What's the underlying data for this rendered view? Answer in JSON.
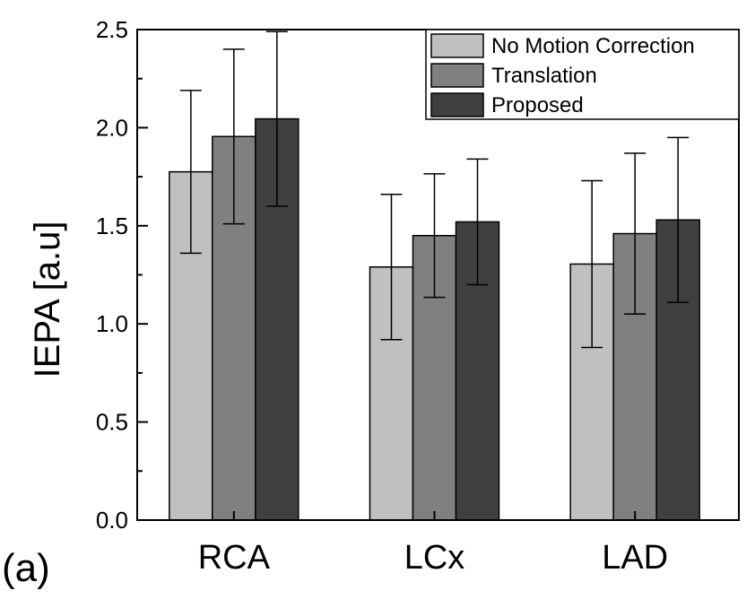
{
  "chart_data": {
    "type": "bar",
    "title": "",
    "xlabel": "",
    "ylabel": "IEPA [a.u]",
    "panel_label": "(a)",
    "categories": [
      "RCA",
      "LCx",
      "LAD"
    ],
    "ylim": [
      0,
      2.5
    ],
    "yticks": [
      0.0,
      0.5,
      1.0,
      1.5,
      2.0,
      2.5
    ],
    "ytick_labels": [
      "0.0",
      "0.5",
      "1.0",
      "1.5",
      "2.0",
      "2.5"
    ],
    "grid": false,
    "legend_position": "top-right",
    "series": [
      {
        "name": "No Motion Correction",
        "color": "#c0c0c0",
        "values": [
          1.775,
          1.29,
          1.305
        ],
        "error": [
          0.415,
          0.37,
          0.425
        ]
      },
      {
        "name": "Translation",
        "color": "#808080",
        "values": [
          1.955,
          1.45,
          1.46
        ],
        "error": [
          0.445,
          0.315,
          0.41
        ]
      },
      {
        "name": "Proposed",
        "color": "#404040",
        "values": [
          2.045,
          1.52,
          1.53
        ],
        "error": [
          0.445,
          0.32,
          0.42
        ]
      }
    ]
  }
}
